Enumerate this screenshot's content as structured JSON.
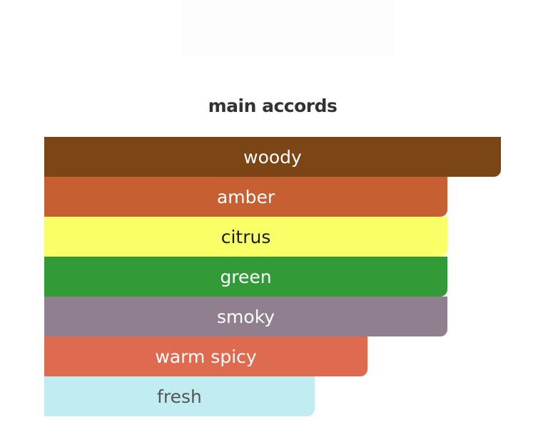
{
  "title": "main accords",
  "accords": [
    {
      "label": "woody",
      "percent": 100,
      "color": "#7B4516",
      "text_color": "#FFFFFF"
    },
    {
      "label": "amber",
      "percent": 88.3,
      "color": "#C65F31",
      "text_color": "#FFFFFF"
    },
    {
      "label": "citrus",
      "percent": 88.3,
      "color": "#F9FF67",
      "text_color": "#1A1A1A"
    },
    {
      "label": "green",
      "percent": 88.3,
      "color": "#339A38",
      "text_color": "#FFFFFF"
    },
    {
      "label": "smoky",
      "percent": 88.3,
      "color": "#90808F",
      "text_color": "#FFFFFF"
    },
    {
      "label": "warm spicy",
      "percent": 70.8,
      "color": "#DE6B50",
      "text_color": "#FFFFFF"
    },
    {
      "label": "fresh",
      "percent": 59.2,
      "color": "#C0ECF2",
      "text_color": "#555555"
    }
  ]
}
